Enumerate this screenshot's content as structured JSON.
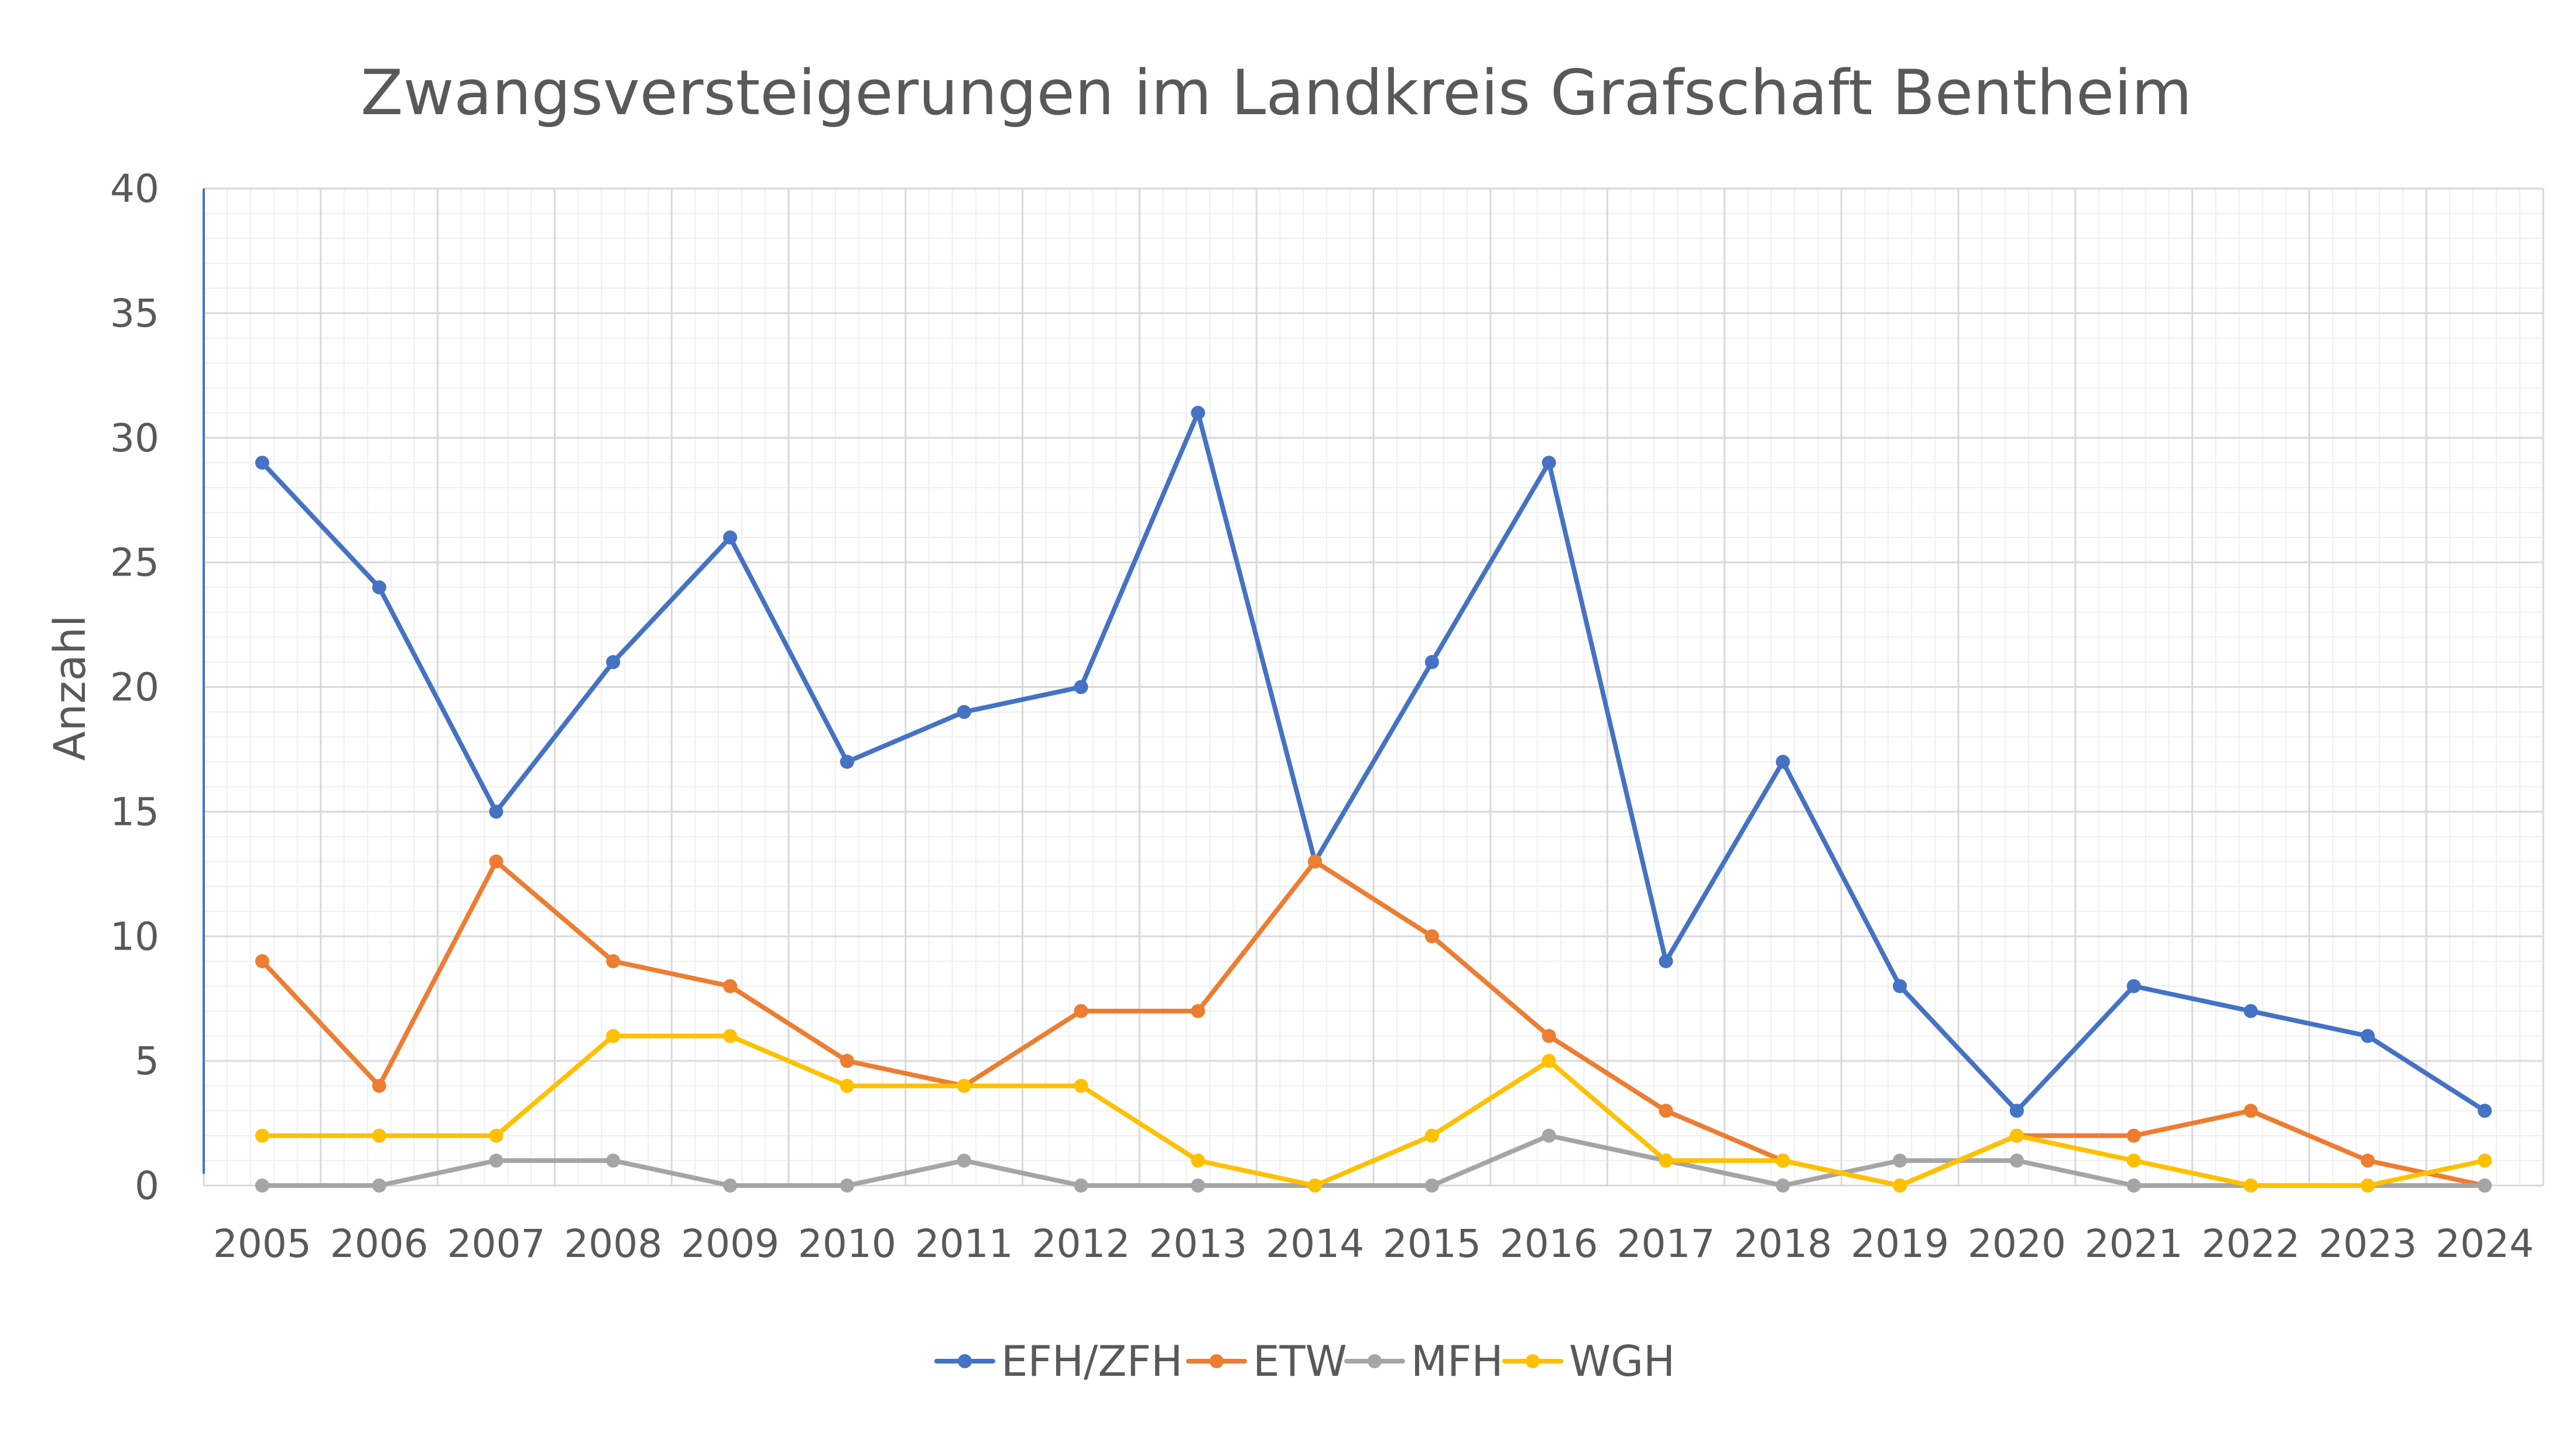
{
  "chart_data": {
    "type": "line",
    "title": "Zwangsversteigerungen im Landkreis Grafschaft Bentheim",
    "xlabel": "",
    "ylabel": "Anzahl",
    "ylim": [
      0,
      40
    ],
    "yticks": [
      "0",
      "5",
      "10",
      "15",
      "20",
      "25",
      "30",
      "35",
      "40"
    ],
    "categories": [
      "2005",
      "2006",
      "2007",
      "2008",
      "2009",
      "2010",
      "2011",
      "2012",
      "2013",
      "2014",
      "2015",
      "2016",
      "2017",
      "2018",
      "2019",
      "2020",
      "2021",
      "2022",
      "2023",
      "2024"
    ],
    "grid": true,
    "legend_position": "bottom",
    "series": [
      {
        "name": "EFH/ZFH",
        "color": "#4472C4",
        "values": [
          29,
          24,
          15,
          21,
          26,
          17,
          19,
          20,
          31,
          13,
          21,
          29,
          9,
          17,
          8,
          3,
          8,
          7,
          6,
          3
        ]
      },
      {
        "name": "ETW",
        "color": "#ED7D31",
        "values": [
          9,
          4,
          13,
          9,
          8,
          5,
          4,
          7,
          7,
          13,
          10,
          6,
          3,
          1,
          0,
          2,
          2,
          3,
          1,
          0
        ]
      },
      {
        "name": "MFH",
        "color": "#A5A5A5",
        "values": [
          0,
          0,
          1,
          1,
          0,
          0,
          1,
          0,
          0,
          0,
          0,
          2,
          1,
          0,
          1,
          1,
          0,
          0,
          0,
          0
        ]
      },
      {
        "name": "WGH",
        "color": "#FFC000",
        "values": [
          2,
          2,
          2,
          6,
          6,
          4,
          4,
          4,
          1,
          0,
          2,
          5,
          1,
          1,
          0,
          2,
          1,
          0,
          0,
          1
        ]
      }
    ]
  }
}
